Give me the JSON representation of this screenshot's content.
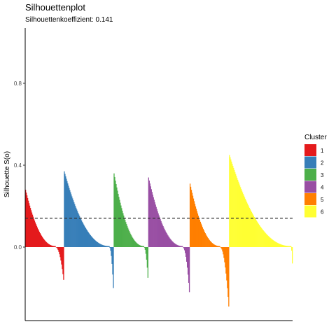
{
  "chart_data": {
    "type": "bar",
    "title": "Silhouettenplot",
    "subtitle": "Silhouettenkoeffizient: 0.141",
    "xlabel": "",
    "ylabel": "Silhouette S(o)",
    "ylim": [
      -0.45,
      1.35
    ],
    "yticks": [
      0.0,
      0.4,
      0.8
    ],
    "ytick_labels": [
      "0.0",
      "0.4",
      "0.8"
    ],
    "average_line": 0.141,
    "grid": false,
    "legend_position": "right",
    "legend_title": "Cluster",
    "clusters": [
      {
        "name": "1",
        "color": "#E41A1C",
        "max": 0.28,
        "min": -0.16,
        "positive_count": 44,
        "negative_count": 12
      },
      {
        "name": "2",
        "color": "#377EB8",
        "max": 0.37,
        "min": -0.2,
        "positive_count": 66,
        "negative_count": 6
      },
      {
        "name": "3",
        "color": "#4DAF4A",
        "max": 0.36,
        "min": -0.15,
        "positive_count": 44,
        "negative_count": 6
      },
      {
        "name": "4",
        "color": "#984EA3",
        "max": 0.34,
        "min": -0.22,
        "positive_count": 50,
        "negative_count": 10
      },
      {
        "name": "5",
        "color": "#FF7F00",
        "max": 0.31,
        "min": -0.29,
        "positive_count": 44,
        "negative_count": 13
      },
      {
        "name": "6",
        "color": "#FFFF33",
        "max": 0.45,
        "min": -0.08,
        "positive_count": 90,
        "negative_count": 2
      }
    ]
  }
}
